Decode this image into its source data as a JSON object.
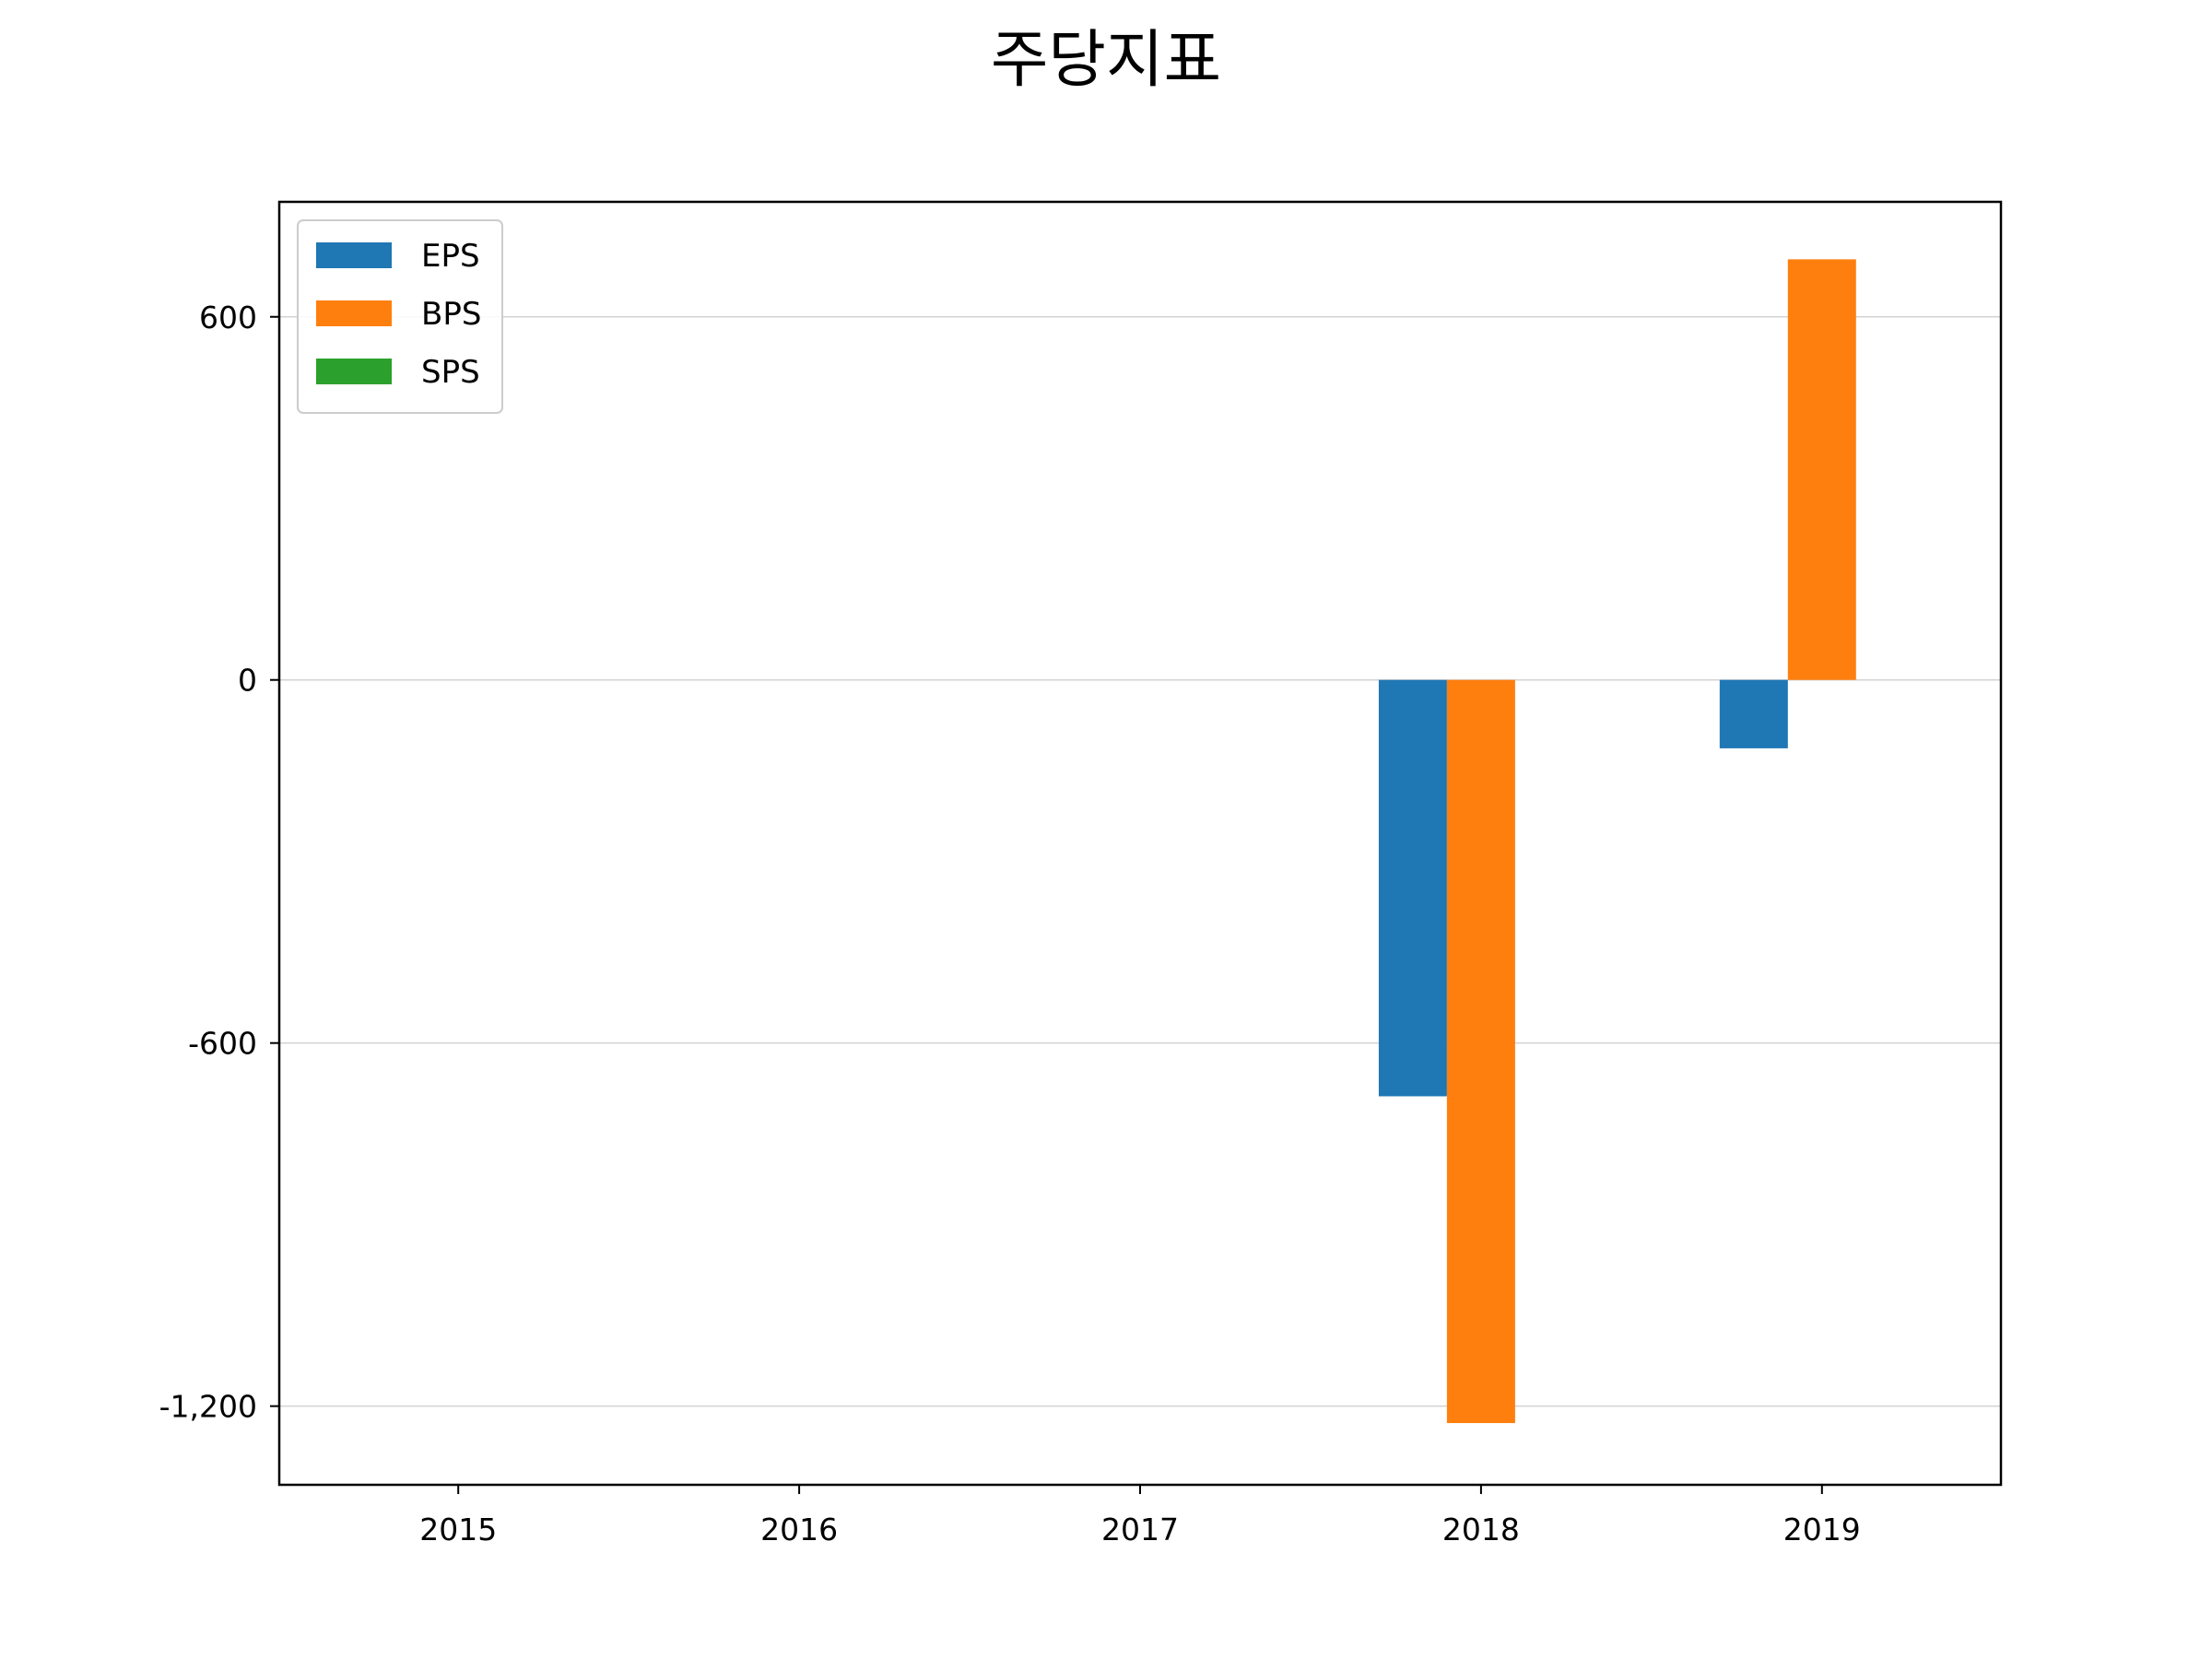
{
  "chart_data": {
    "type": "bar",
    "title": "주당지표",
    "xlabel": "",
    "ylabel": "",
    "categories": [
      "2015",
      "2016",
      "2017",
      "2018",
      "2019"
    ],
    "series": [
      {
        "name": "EPS",
        "color": "#1f77b4",
        "values": [
          null,
          null,
          null,
          -688,
          -113
        ]
      },
      {
        "name": "BPS",
        "color": "#ff7f0e",
        "values": [
          null,
          null,
          null,
          -1228,
          695
        ]
      },
      {
        "name": "SPS",
        "color": "#2ca02c",
        "values": [
          null,
          null,
          null,
          null,
          null
        ]
      }
    ],
    "ylim": [
      -1330,
      790
    ],
    "yticks": [
      {
        "value": 600,
        "label": "600"
      },
      {
        "value": 0,
        "label": "0"
      },
      {
        "value": -600,
        "label": "-600"
      },
      {
        "value": -1200,
        "label": "-1,200"
      }
    ],
    "grid": "horizontal",
    "legend_position": "upper-left"
  }
}
